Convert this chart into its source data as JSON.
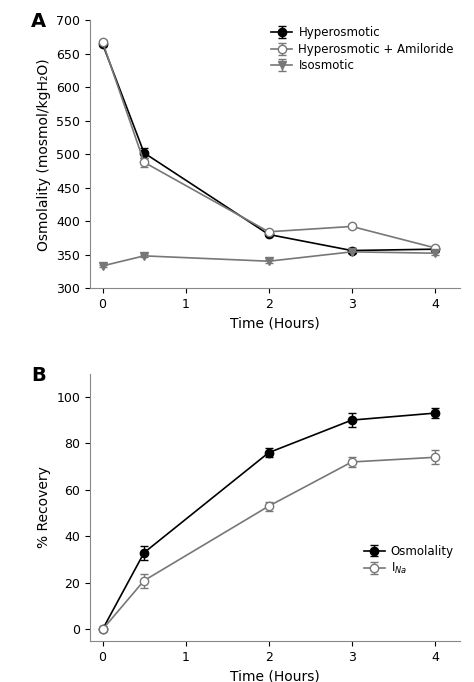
{
  "panel_A": {
    "title": "A",
    "xlabel": "Time (Hours)",
    "ylabel": "Osmolality (mosmol/kgH₂O)",
    "xlim": [
      -0.15,
      4.3
    ],
    "ylim": [
      300,
      700
    ],
    "yticks": [
      300,
      350,
      400,
      450,
      500,
      550,
      600,
      650,
      700
    ],
    "xticks": [
      0,
      1,
      2,
      3,
      4
    ],
    "series": {
      "hyperosmotic": {
        "x": [
          0,
          0.5,
          2,
          3,
          4
        ],
        "y": [
          665,
          502,
          380,
          356,
          358
        ],
        "yerr": [
          3,
          8,
          3,
          4,
          3
        ],
        "label": "Hyperosmotic",
        "marker": "o",
        "fillstyle": "full",
        "color": "#000000",
        "linestyle": "-"
      },
      "hyperosmotic_amiloride": {
        "x": [
          0,
          0.5,
          2,
          3,
          4
        ],
        "y": [
          668,
          488,
          384,
          392,
          360
        ],
        "yerr": [
          3,
          7,
          3,
          3,
          3
        ],
        "label": "Hyperosmotic + Amiloride",
        "marker": "o",
        "fillstyle": "none",
        "color": "#777777",
        "linestyle": "-"
      },
      "isosmotic": {
        "x": [
          0,
          0.5,
          2,
          3,
          4
        ],
        "y": [
          333,
          348,
          340,
          354,
          352
        ],
        "yerr": [
          2,
          2,
          2,
          2,
          2
        ],
        "label": "Isosmotic",
        "marker": "v",
        "fillstyle": "full",
        "color": "#777777",
        "linestyle": "-"
      }
    }
  },
  "panel_B": {
    "title": "B",
    "xlabel": "Time (Hours)",
    "ylabel": "% Recovery",
    "xlim": [
      -0.15,
      4.3
    ],
    "ylim": [
      -5,
      110
    ],
    "yticks": [
      0,
      20,
      40,
      60,
      80,
      100
    ],
    "xticks": [
      0,
      1,
      2,
      3,
      4
    ],
    "series": {
      "osmolality": {
        "x": [
          0,
          0.5,
          2,
          3,
          4
        ],
        "y": [
          0,
          33,
          76,
          90,
          93
        ],
        "yerr": [
          0,
          3,
          2,
          3,
          2
        ],
        "label": "Osmolality",
        "marker": "o",
        "fillstyle": "full",
        "color": "#000000",
        "linestyle": "-"
      },
      "ina": {
        "x": [
          0,
          0.5,
          2,
          3,
          4
        ],
        "y": [
          0,
          21,
          53,
          72,
          74
        ],
        "yerr": [
          0,
          3,
          2,
          2,
          3
        ],
        "label": "I$_{Na}$",
        "marker": "o",
        "fillstyle": "none",
        "color": "#777777",
        "linestyle": "-"
      }
    }
  },
  "figure_bg": "#ffffff",
  "axes_bg": "#ffffff",
  "font_size": 10,
  "label_font_size": 10,
  "tick_font_size": 9,
  "legend_font_size": 8.5,
  "panel_label_font_size": 14
}
